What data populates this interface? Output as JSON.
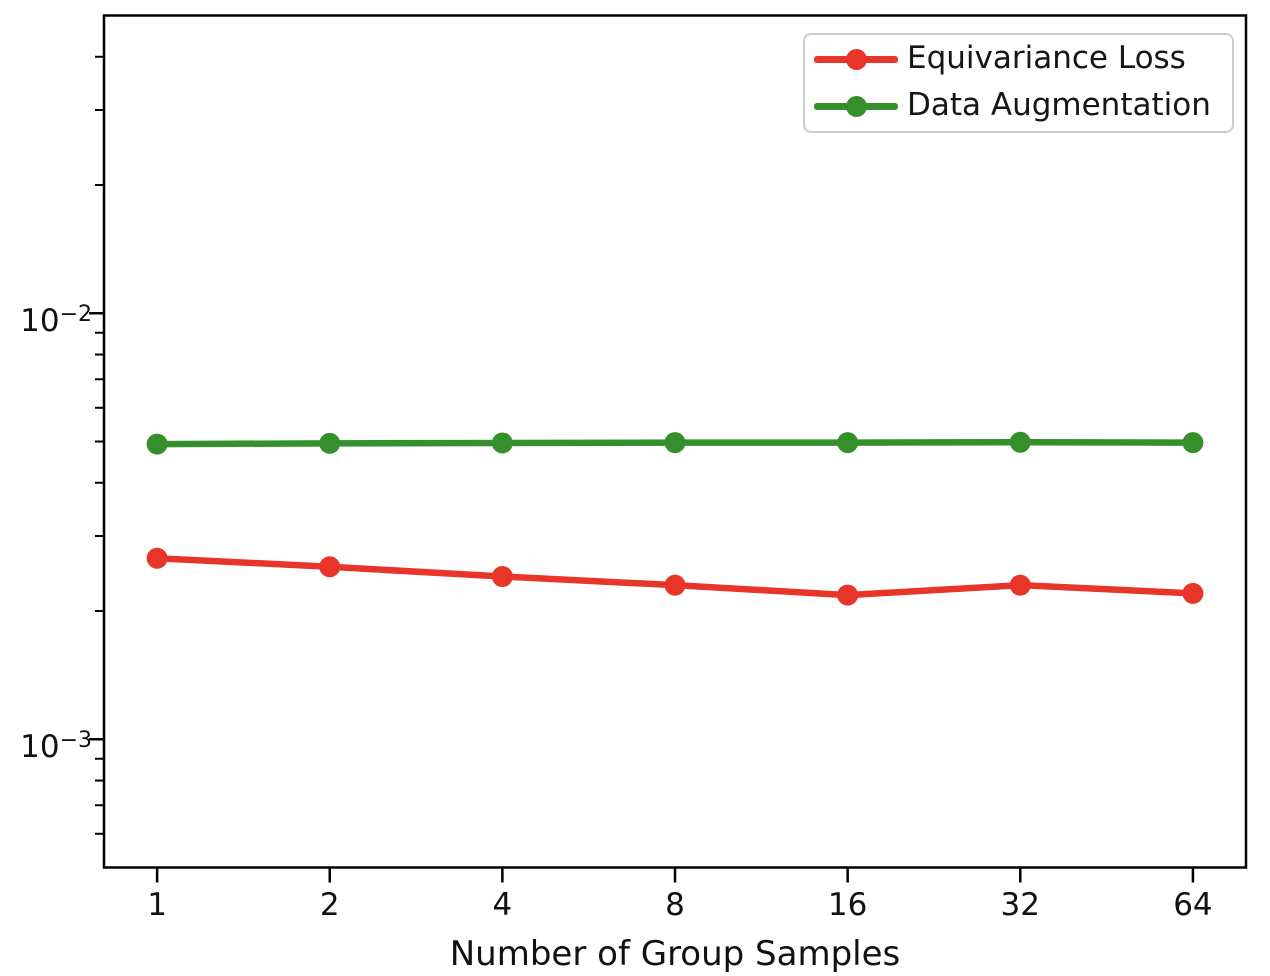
{
  "chart_data": {
    "type": "line",
    "title": "",
    "xlabel": "Number of Group Samples",
    "ylabel": "",
    "x_scale": "log2 (equally spaced category ticks)",
    "y_scale": "log10",
    "categories": [
      "1",
      "2",
      "4",
      "8",
      "16",
      "32",
      "64"
    ],
    "x_values": [
      1,
      2,
      4,
      8,
      16,
      32,
      64
    ],
    "ylim": [
      0.0005,
      0.05
    ],
    "grid": false,
    "legend_position": "upper-right",
    "y_major_ticks": [
      {
        "value": 0.01,
        "base": "10",
        "exp": "−2"
      },
      {
        "value": 0.001,
        "base": "10",
        "exp": "−3"
      }
    ],
    "series": [
      {
        "name": "Equivariance Loss",
        "color": "#e8352a",
        "marker": "o",
        "values": [
          0.00266,
          0.00254,
          0.00241,
          0.0023,
          0.00218,
          0.0023,
          0.0022
        ]
      },
      {
        "name": "Data Augmentation",
        "color": "#35902c",
        "marker": "o",
        "values": [
          0.00493,
          0.00495,
          0.00496,
          0.00497,
          0.00497,
          0.00498,
          0.00497
        ]
      }
    ],
    "axis_color": "#000000",
    "text_color": "#111111",
    "legend_border_color": "#cccccc"
  }
}
